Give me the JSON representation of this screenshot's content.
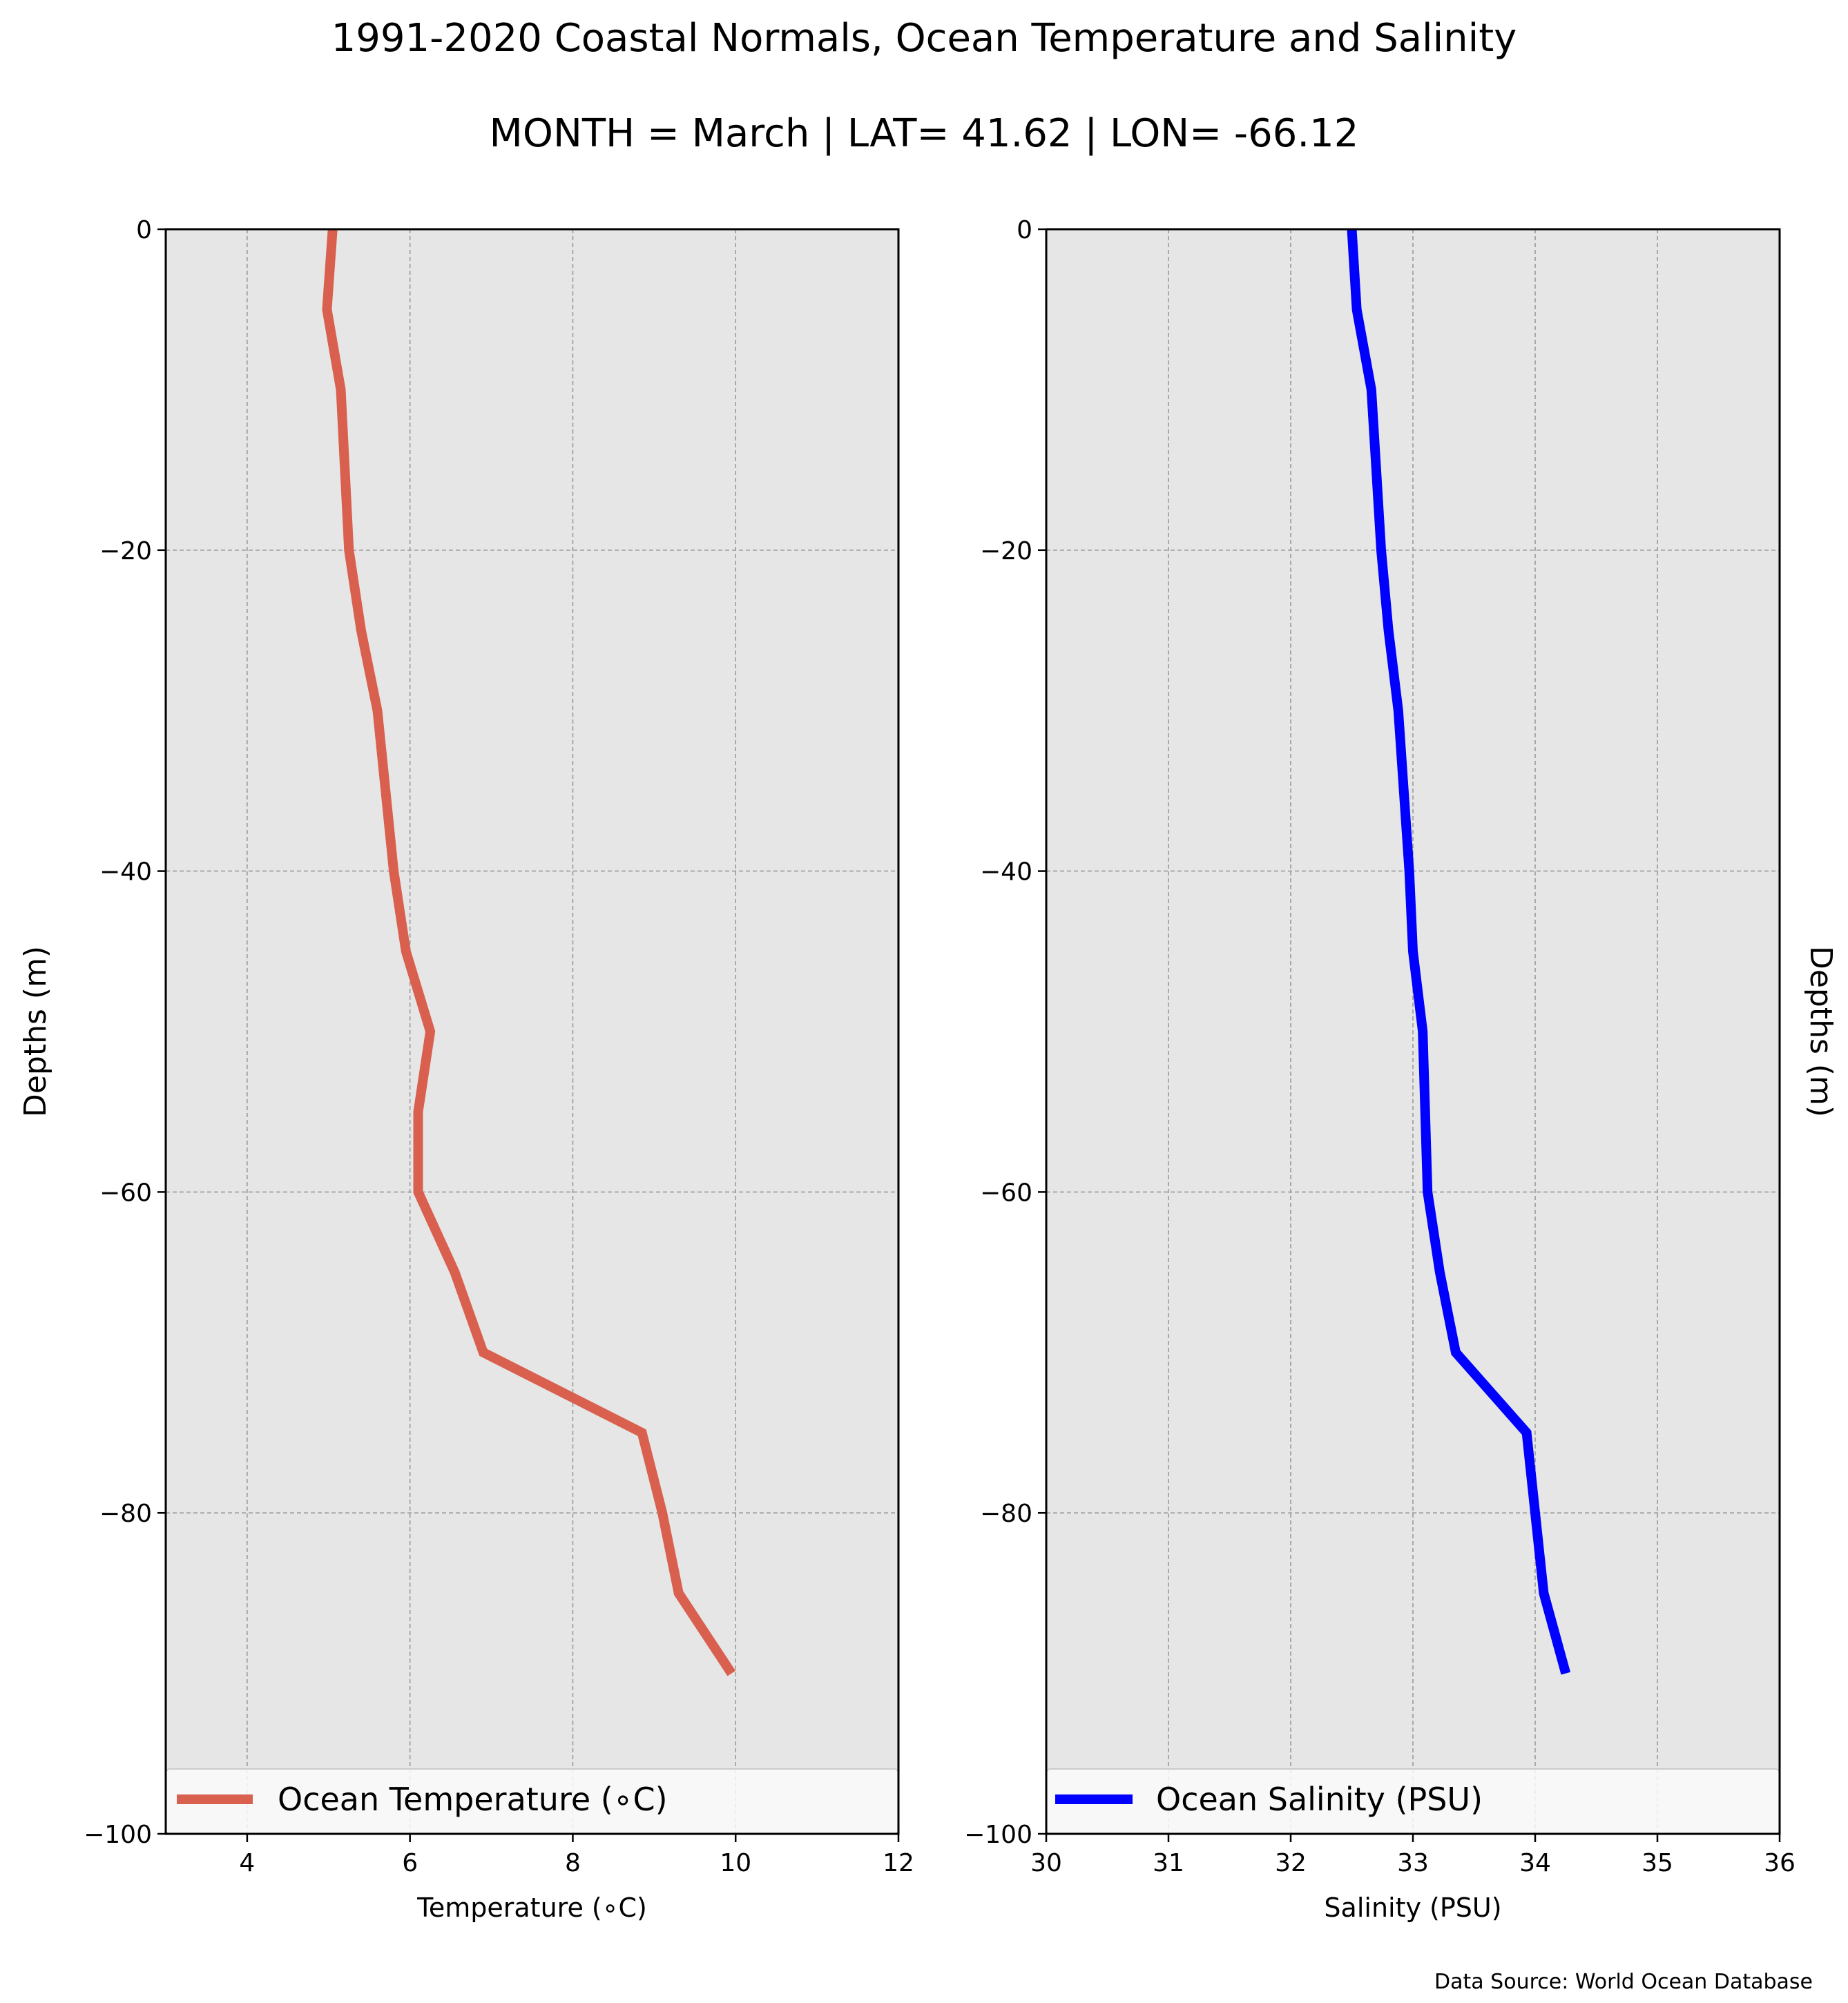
{
  "figure": {
    "title": "1991-2020 Coastal Normals, Ocean Temperature and Salinity",
    "subtitle": "MONTH = March | LAT= 41.62 | LON= -66.12",
    "source_note": "Data Source: World Ocean Database",
    "background": "#ffffff",
    "axes_background": "#e6e6e6",
    "grid_color": "#9a9a9a"
  },
  "chart_data": [
    {
      "type": "line",
      "id": "temperature",
      "xlabel": "Temperature (∘C)",
      "ylabel": "Depths (m)",
      "ylabel_side": "left",
      "xlim": [
        3,
        12
      ],
      "ylim": [
        -100,
        0
      ],
      "xticks": [
        4,
        6,
        8,
        10,
        12
      ],
      "yticks": [
        0,
        -20,
        -40,
        -60,
        -80,
        -100
      ],
      "grid": true,
      "legend_position": "lower center",
      "series": [
        {
          "name": "Ocean Temperature (∘C)",
          "color": "#d9604e",
          "x": [
            5.05,
            4.98,
            5.15,
            5.2,
            5.25,
            5.4,
            5.6,
            5.8,
            5.95,
            6.25,
            6.1,
            6.1,
            6.55,
            6.9,
            8.85,
            9.1,
            9.3,
            9.95
          ],
          "y": [
            0,
            -5,
            -10,
            -15,
            -20,
            -25,
            -30,
            -40,
            -45,
            -50,
            -55,
            -60,
            -65,
            -70,
            -75,
            -80,
            -85,
            -90
          ]
        }
      ]
    },
    {
      "type": "line",
      "id": "salinity",
      "xlabel": "Salinity (PSU)",
      "ylabel": "Depths (m)",
      "ylabel_side": "right",
      "xlim": [
        30,
        36
      ],
      "ylim": [
        -100,
        0
      ],
      "xticks": [
        30,
        31,
        32,
        33,
        34,
        35,
        36
      ],
      "yticks": [
        0,
        -20,
        -40,
        -60,
        -80,
        -100
      ],
      "grid": true,
      "legend_position": "lower center",
      "series": [
        {
          "name": "Ocean Salinity (PSU)",
          "color": "#0000ff",
          "x": [
            32.5,
            32.54,
            32.66,
            32.7,
            32.74,
            32.8,
            32.88,
            32.97,
            33.0,
            33.08,
            33.1,
            33.12,
            33.22,
            33.35,
            33.93,
            34.0,
            34.07,
            34.25
          ],
          "y": [
            0,
            -5,
            -10,
            -15,
            -20,
            -25,
            -30,
            -40,
            -45,
            -50,
            -55,
            -60,
            -65,
            -70,
            -75,
            -80,
            -85,
            -90
          ]
        }
      ]
    }
  ]
}
